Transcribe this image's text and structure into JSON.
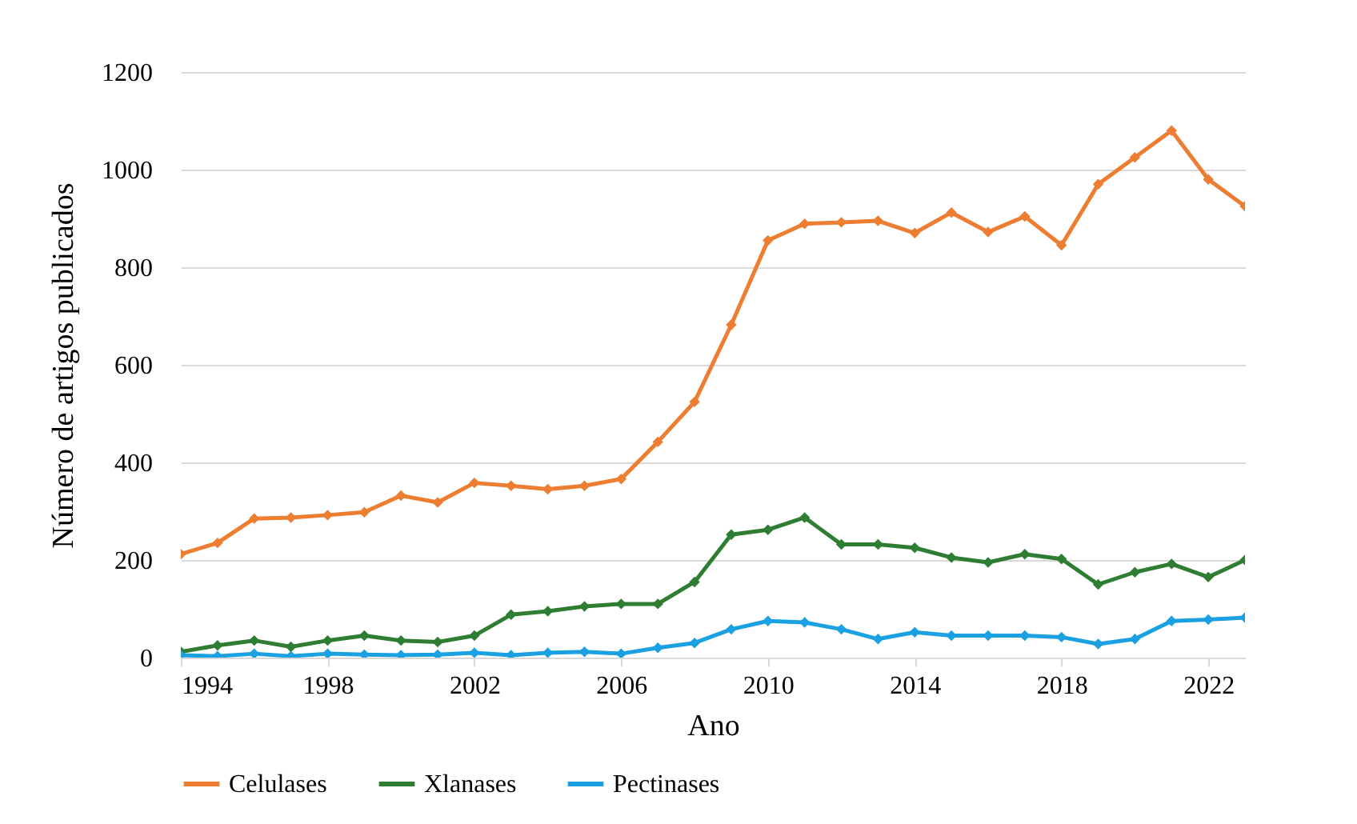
{
  "chart_data": {
    "type": "line",
    "xlabel": "Ano",
    "ylabel": "Número de artigos publicados",
    "x": [
      1994,
      1995,
      1996,
      1997,
      1998,
      1999,
      2000,
      2001,
      2002,
      2003,
      2004,
      2005,
      2006,
      2007,
      2008,
      2009,
      2010,
      2011,
      2012,
      2013,
      2014,
      2015,
      2016,
      2017,
      2018,
      2019,
      2020,
      2021,
      2022,
      2023
    ],
    "series": [
      {
        "name": "Celulases",
        "color": "#ed7d31",
        "values": [
          212,
          235,
          285,
          287,
          292,
          298,
          332,
          318,
          358,
          352,
          345,
          352,
          366,
          442,
          524,
          682,
          855,
          889,
          892,
          895,
          870,
          912,
          872,
          904,
          845,
          970,
          1025,
          1080,
          980,
          925
        ]
      },
      {
        "name": "Xlanases",
        "color": "#2e7d32",
        "values": [
          12,
          25,
          35,
          22,
          35,
          45,
          35,
          32,
          45,
          88,
          95,
          105,
          110,
          110,
          155,
          252,
          262,
          287,
          232,
          232,
          225,
          205,
          195,
          212,
          202,
          150,
          175,
          192,
          165,
          200
        ]
      },
      {
        "name": "Pectinases",
        "color": "#1ba1e2",
        "values": [
          5,
          3,
          8,
          3,
          8,
          6,
          5,
          6,
          10,
          5,
          10,
          12,
          8,
          20,
          30,
          58,
          75,
          72,
          58,
          38,
          52,
          45,
          45,
          45,
          42,
          28,
          38,
          75,
          78,
          82
        ]
      }
    ],
    "xlim": [
      1994,
      2023
    ],
    "xticks": [
      1994,
      1998,
      2002,
      2006,
      2010,
      2014,
      2018,
      2022
    ],
    "ylim": [
      0,
      1200
    ],
    "yticks": [
      0,
      200,
      400,
      600,
      800,
      1000,
      1200
    ],
    "grid": "y",
    "legend": "bottom",
    "marker": "diamond",
    "line_style": "solid"
  }
}
